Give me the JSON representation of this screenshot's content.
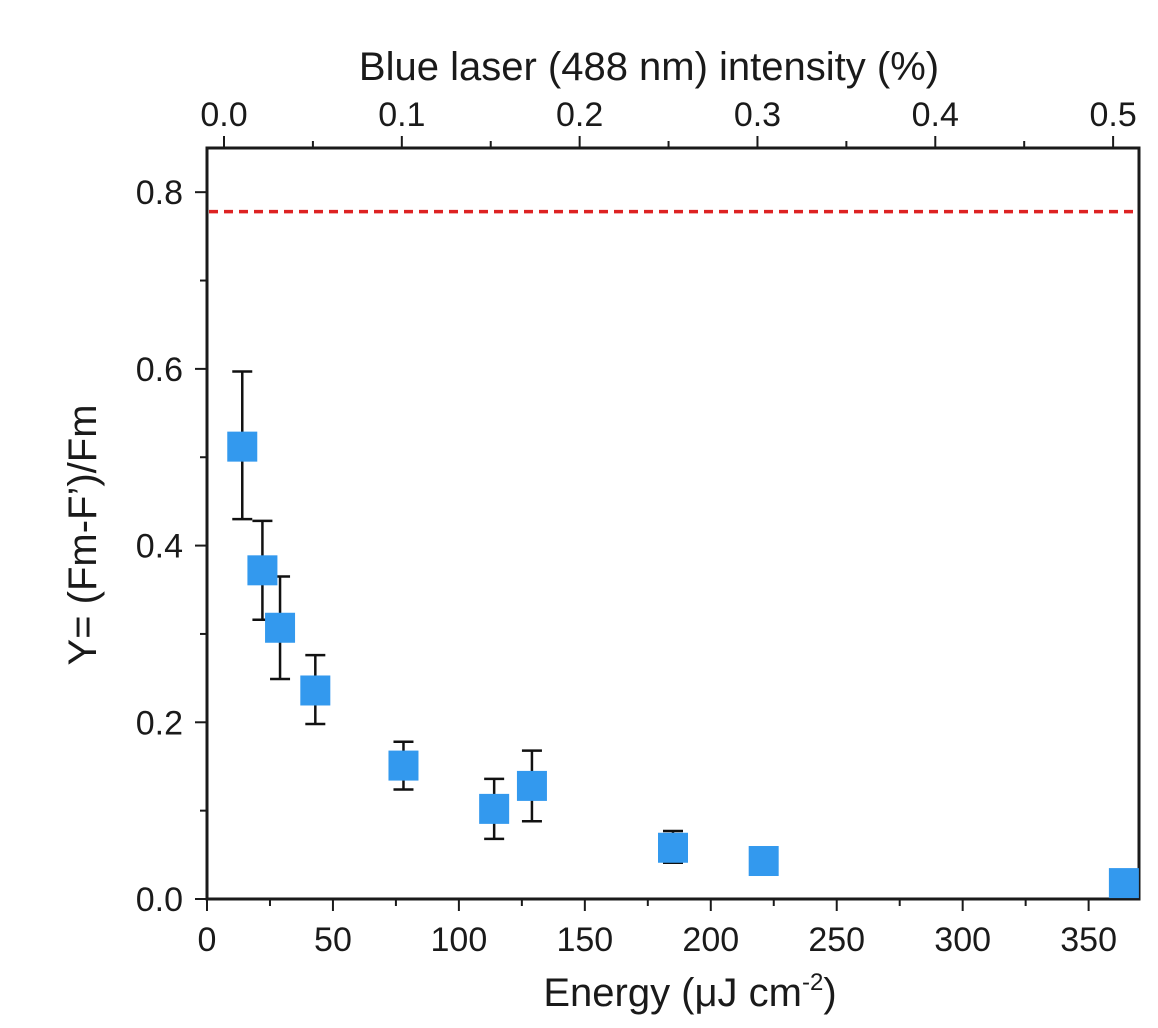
{
  "chart_data": {
    "type": "scatter",
    "title": "",
    "xlabel": "Energy (μJ cm",
    "xlabel_sup": "-2",
    "xlabel_end": ")",
    "ylabel": "Y= (Fm-F’)/Fm",
    "top_xlabel": "Blue laser (488 nm) intensity (%)",
    "xlim": [
      0,
      370
    ],
    "ylim": [
      0,
      0.85
    ],
    "top_xlim": [
      0,
      0.505
    ],
    "grid": false,
    "x_ticks": [
      0,
      50,
      100,
      150,
      200,
      250,
      300,
      350
    ],
    "x_tick_labels": [
      "0",
      "50",
      "100",
      "150",
      "200",
      "250",
      "300",
      "350"
    ],
    "y_ticks": [
      0.0,
      0.2,
      0.4,
      0.6,
      0.8
    ],
    "y_tick_labels": [
      "0.0",
      "0.2",
      "0.4",
      "0.6",
      "0.8"
    ],
    "top_x_ticks": [
      0.0,
      0.1,
      0.2,
      0.3,
      0.4,
      0.5
    ],
    "top_x_tick_labels": [
      "0.0",
      "0.1",
      "0.2",
      "0.3",
      "0.4",
      "0.5"
    ],
    "series": [
      {
        "color": "#3399ee",
        "marker": "square",
        "x": [
          14,
          22,
          29,
          43,
          78,
          114,
          129,
          185,
          221,
          364
        ],
        "y": [
          0.512,
          0.372,
          0.307,
          0.236,
          0.151,
          0.102,
          0.128,
          0.058,
          0.043,
          0.018
        ],
        "err_low": [
          0.43,
          0.316,
          0.249,
          0.198,
          0.124,
          0.068,
          0.088,
          0.041,
          0.029,
          0.005
        ],
        "err_high": [
          0.597,
          0.428,
          0.365,
          0.276,
          0.178,
          0.136,
          0.168,
          0.077,
          0.057,
          0.033
        ]
      }
    ],
    "reference_line": {
      "y": 0.778,
      "color": "#dd2222",
      "style": "dashed"
    }
  }
}
